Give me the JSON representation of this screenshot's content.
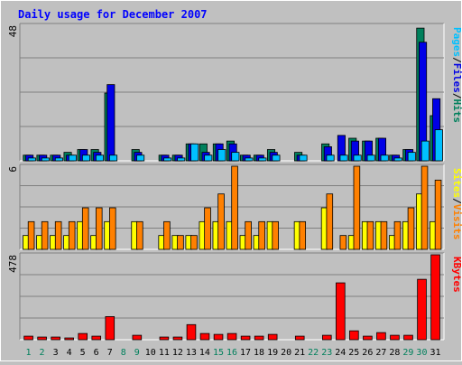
{
  "title": "Daily usage for December 2007",
  "colors": {
    "background": "#c0c0c0",
    "plot_bg": "#c0c0c0",
    "title": "#0000ff",
    "hits": "#00805c",
    "files": "#0000e6",
    "pages": "#00c0ff",
    "visits": "#ff8000",
    "sites": "#ffff00",
    "kbytes": "#ff0000",
    "weekend": "#00805c",
    "weekday": "#000000"
  },
  "chart_data": [
    {
      "type": "bar",
      "panel": "hits-files-pages",
      "legend": [
        "Pages",
        "/",
        "Files",
        "/",
        "Hits"
      ],
      "ymax_label": "48",
      "ylim": [
        0,
        48
      ],
      "grid": true,
      "categories": [
        "1",
        "2",
        "3",
        "4",
        "5",
        "6",
        "7",
        "8",
        "9",
        "10",
        "11",
        "12",
        "13",
        "14",
        "15",
        "16",
        "17",
        "18",
        "19",
        "20",
        "21",
        "22",
        "23",
        "24",
        "25",
        "26",
        "27",
        "28",
        "29",
        "30",
        "31"
      ],
      "series": [
        {
          "name": "Hits",
          "values": [
            2,
            2,
            2,
            3,
            4,
            4,
            24,
            0,
            4,
            0,
            2,
            2,
            6,
            6,
            6,
            7,
            2,
            2,
            4,
            0,
            3,
            0,
            6,
            0,
            8,
            7,
            8,
            2,
            4,
            47,
            16
          ]
        },
        {
          "name": "Files",
          "values": [
            2,
            2,
            2,
            2,
            4,
            3,
            27,
            0,
            3,
            0,
            2,
            2,
            6,
            3,
            6,
            6,
            2,
            2,
            3,
            0,
            2,
            0,
            5,
            9,
            7,
            7,
            8,
            2,
            4,
            42,
            22
          ]
        },
        {
          "name": "Pages",
          "values": [
            1,
            1,
            1,
            2,
            2,
            2,
            2,
            0,
            2,
            0,
            1,
            1,
            6,
            2,
            4,
            3,
            1,
            1,
            2,
            0,
            2,
            0,
            2,
            2,
            2,
            2,
            2,
            1,
            3,
            7,
            11
          ]
        }
      ]
    },
    {
      "type": "bar",
      "panel": "sites-visits",
      "legend": [
        "Sites",
        "/",
        "Visits"
      ],
      "ymax_label": "6",
      "ylim": [
        0,
        6
      ],
      "grid": true,
      "categories": [
        "1",
        "2",
        "3",
        "4",
        "5",
        "6",
        "7",
        "8",
        "9",
        "10",
        "11",
        "12",
        "13",
        "14",
        "15",
        "16",
        "17",
        "18",
        "19",
        "20",
        "21",
        "22",
        "23",
        "24",
        "25",
        "26",
        "27",
        "28",
        "29",
        "30",
        "31"
      ],
      "series": [
        {
          "name": "Sites",
          "values": [
            1,
            1,
            1,
            1,
            2,
            1,
            2,
            0,
            2,
            0,
            1,
            1,
            1,
            2,
            2,
            2,
            1,
            1,
            2,
            0,
            2,
            0,
            3,
            0,
            1,
            2,
            2,
            1,
            2,
            4,
            2
          ]
        },
        {
          "name": "Visits",
          "values": [
            2,
            2,
            2,
            2,
            3,
            3,
            3,
            0,
            2,
            0,
            2,
            1,
            1,
            3,
            4,
            6,
            2,
            2,
            2,
            0,
            2,
            0,
            4,
            1,
            6,
            2,
            2,
            2,
            3,
            6,
            5
          ]
        }
      ]
    },
    {
      "type": "bar",
      "panel": "kbytes",
      "legend": [
        "KBytes"
      ],
      "ymax_label": "478",
      "ylim": [
        0,
        478
      ],
      "grid": true,
      "categories": [
        "1",
        "2",
        "3",
        "4",
        "5",
        "6",
        "7",
        "8",
        "9",
        "10",
        "11",
        "12",
        "13",
        "14",
        "15",
        "16",
        "17",
        "18",
        "19",
        "20",
        "21",
        "22",
        "23",
        "24",
        "25",
        "26",
        "27",
        "28",
        "29",
        "30",
        "31"
      ],
      "series": [
        {
          "name": "KBytes",
          "values": [
            20,
            15,
            15,
            10,
            35,
            20,
            130,
            0,
            25,
            0,
            15,
            15,
            85,
            35,
            30,
            35,
            20,
            20,
            30,
            0,
            20,
            0,
            25,
            320,
            50,
            20,
            40,
            25,
            25,
            340,
            480
          ]
        }
      ]
    }
  ],
  "x_labels": {
    "days": [
      "1",
      "2",
      "3",
      "4",
      "5",
      "6",
      "7",
      "8",
      "9",
      "10",
      "11",
      "12",
      "13",
      "14",
      "15",
      "16",
      "17",
      "18",
      "19",
      "20",
      "21",
      "22",
      "23",
      "24",
      "25",
      "26",
      "27",
      "28",
      "29",
      "30",
      "31"
    ],
    "weekend_days": [
      "1",
      "2",
      "8",
      "9",
      "15",
      "16",
      "22",
      "23",
      "29",
      "30"
    ]
  }
}
